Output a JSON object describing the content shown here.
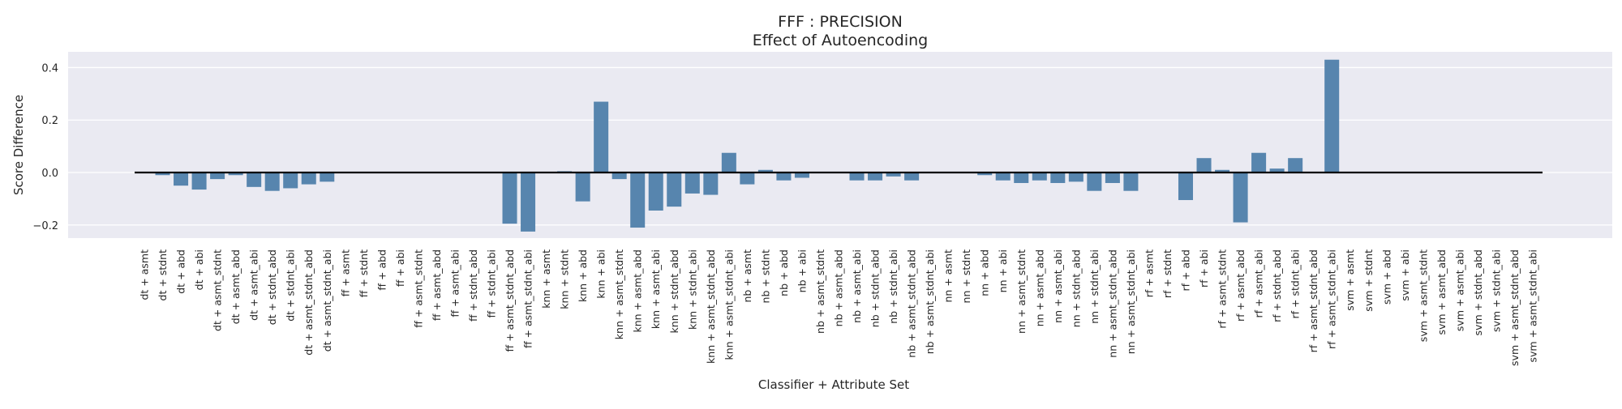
{
  "chart_data": {
    "type": "bar",
    "title": "FFF : PRECISION",
    "subtitle": "Effect of Autoencoding",
    "xlabel": "Classifier + Attribute Set",
    "ylabel": "Score Difference",
    "ylim": [
      -0.25,
      0.46
    ],
    "yticks": [
      -0.2,
      0.0,
      0.2,
      0.4
    ],
    "ytick_labels": [
      "−0.2",
      "0.0",
      "0.2",
      "0.4"
    ],
    "grid": true,
    "reference_line_y": 0,
    "colors": {
      "bar": "#5785ae",
      "background": "#eaeaf2",
      "grid": "#ffffff",
      "zero_line": "#000000"
    },
    "categories": [
      "dt + asmt",
      "dt + stdnt",
      "dt + abd",
      "dt + abi",
      "dt + asmt_stdnt",
      "dt + asmt_abd",
      "dt + asmt_abi",
      "dt + stdnt_abd",
      "dt + stdnt_abi",
      "dt + asmt_stdnt_abd",
      "dt + asmt_stdnt_abi",
      "ff + asmt",
      "ff + stdnt",
      "ff + abd",
      "ff + abi",
      "ff + asmt_stdnt",
      "ff + asmt_abd",
      "ff + asmt_abi",
      "ff + stdnt_abd",
      "ff + stdnt_abi",
      "ff + asmt_stdnt_abd",
      "ff + asmt_stdnt_abi",
      "knn + asmt",
      "knn + stdnt",
      "knn + abd",
      "knn + abi",
      "knn + asmt_stdnt",
      "knn + asmt_abd",
      "knn + asmt_abi",
      "knn + stdnt_abd",
      "knn + stdnt_abi",
      "knn + asmt_stdnt_abd",
      "knn + asmt_stdnt_abi",
      "nb + asmt",
      "nb + stdnt",
      "nb + abd",
      "nb + abi",
      "nb + asmt_stdnt",
      "nb + asmt_abd",
      "nb + asmt_abi",
      "nb + stdnt_abd",
      "nb + stdnt_abi",
      "nb + asmt_stdnt_abd",
      "nb + asmt_stdnt_abi",
      "nn + asmt",
      "nn + stdnt",
      "nn + abd",
      "nn + abi",
      "nn + asmt_stdnt",
      "nn + asmt_abd",
      "nn + asmt_abi",
      "nn + stdnt_abd",
      "nn + stdnt_abi",
      "nn + asmt_stdnt_abd",
      "nn + asmt_stdnt_abi",
      "rf + asmt",
      "rf + stdnt",
      "rf + abd",
      "rf + abi",
      "rf + asmt_stdnt",
      "rf + asmt_abd",
      "rf + asmt_abi",
      "rf + stdnt_abd",
      "rf + stdnt_abi",
      "rf + asmt_stdnt_abd",
      "rf + asmt_stdnt_abi",
      "svm + asmt",
      "svm + stdnt",
      "svm + abd",
      "svm + abi",
      "svm + asmt_stdnt",
      "svm + asmt_abd",
      "svm + asmt_abi",
      "svm + stdnt_abd",
      "svm + stdnt_abi",
      "svm + asmt_stdnt_abd",
      "svm + asmt_stdnt_abi"
    ],
    "values": [
      0.0,
      -0.01,
      -0.05,
      -0.065,
      -0.025,
      -0.01,
      -0.055,
      -0.07,
      -0.06,
      -0.045,
      -0.035,
      0.0,
      0.0,
      0.0,
      0.0,
      0.0,
      0.0,
      0.0,
      0.0,
      0.0,
      -0.195,
      -0.225,
      0.0,
      0.005,
      -0.11,
      0.27,
      -0.025,
      -0.21,
      -0.145,
      -0.13,
      -0.08,
      -0.085,
      0.075,
      -0.045,
      0.01,
      -0.03,
      -0.02,
      0.0,
      0.0,
      -0.03,
      -0.03,
      -0.015,
      -0.03,
      0.0,
      0.0,
      0.0,
      -0.01,
      -0.03,
      -0.04,
      -0.03,
      -0.04,
      -0.035,
      -0.07,
      -0.04,
      -0.07,
      0.0,
      0.0,
      -0.105,
      0.055,
      0.01,
      -0.19,
      0.075,
      0.015,
      0.055,
      0.0,
      0.43,
      0.0,
      0.0,
      0.0,
      0.0,
      0.0,
      0.0,
      0.0,
      0.0,
      0.0,
      0.0,
      0.0
    ]
  }
}
